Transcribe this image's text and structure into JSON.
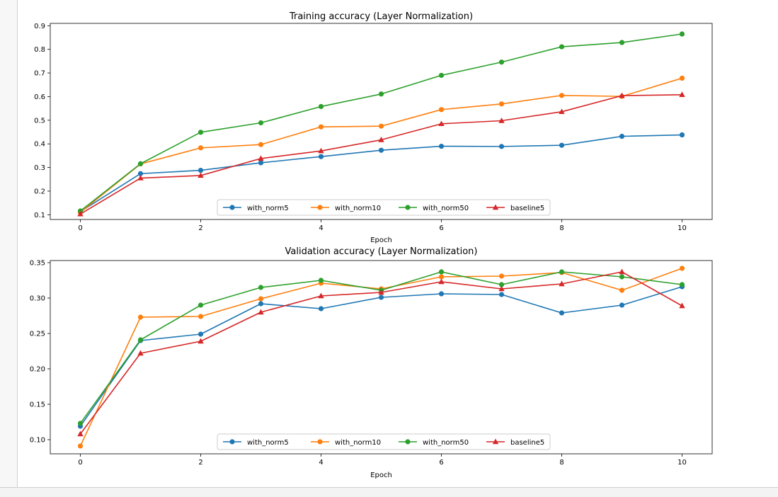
{
  "chart_data": [
    {
      "type": "line",
      "title": "Training accuracy (Layer Normalization)",
      "xlabel": "Epoch",
      "ylabel": "",
      "xlim": [
        -0.5,
        10.5
      ],
      "ylim": [
        0.08,
        0.91
      ],
      "xticks": [
        0,
        2,
        4,
        6,
        8,
        10
      ],
      "yticks": [
        0.1,
        0.2,
        0.3,
        0.4,
        0.5,
        0.6,
        0.7,
        0.8,
        0.9
      ],
      "ytick_labels": [
        "0.1",
        "0.2",
        "0.3",
        "0.4",
        "0.5",
        "0.6",
        "0.7",
        "0.8",
        "0.9"
      ],
      "grid": false,
      "legend": "lower-center",
      "x": [
        0,
        1,
        2,
        3,
        4,
        5,
        6,
        7,
        8,
        9,
        10
      ],
      "series": [
        {
          "name": "with_norm5",
          "color": "#1f77b4",
          "marker": "circle",
          "values": [
            0.113,
            0.274,
            0.288,
            0.32,
            0.346,
            0.373,
            0.39,
            0.389,
            0.394,
            0.432,
            0.438
          ]
        },
        {
          "name": "with_norm10",
          "color": "#ff7f0e",
          "marker": "circle",
          "values": [
            0.11,
            0.315,
            0.383,
            0.397,
            0.472,
            0.475,
            0.545,
            0.569,
            0.605,
            0.601,
            0.678
          ]
        },
        {
          "name": "with_norm50",
          "color": "#2ca02c",
          "marker": "circle",
          "values": [
            0.116,
            0.316,
            0.449,
            0.489,
            0.558,
            0.611,
            0.69,
            0.746,
            0.811,
            0.829,
            0.865
          ]
        },
        {
          "name": "baseline5",
          "color": "#d62728",
          "marker": "triangle",
          "values": [
            0.103,
            0.255,
            0.266,
            0.338,
            0.37,
            0.417,
            0.485,
            0.498,
            0.536,
            0.604,
            0.608
          ]
        }
      ]
    },
    {
      "type": "line",
      "title": "Validation accuracy (Layer Normalization)",
      "xlabel": "Epoch",
      "ylabel": "",
      "xlim": [
        -0.5,
        10.5
      ],
      "ylim": [
        0.08,
        0.353
      ],
      "xticks": [
        0,
        2,
        4,
        6,
        8,
        10
      ],
      "yticks": [
        0.1,
        0.15,
        0.2,
        0.25,
        0.3,
        0.35
      ],
      "ytick_labels": [
        "0.10",
        "0.15",
        "0.20",
        "0.25",
        "0.30",
        "0.35"
      ],
      "grid": false,
      "legend": "lower-center",
      "x": [
        0,
        1,
        2,
        3,
        4,
        5,
        6,
        7,
        8,
        9,
        10
      ],
      "series": [
        {
          "name": "with_norm5",
          "color": "#1f77b4",
          "marker": "circle",
          "values": [
            0.119,
            0.24,
            0.249,
            0.292,
            0.285,
            0.301,
            0.306,
            0.305,
            0.279,
            0.29,
            0.316
          ]
        },
        {
          "name": "with_norm10",
          "color": "#ff7f0e",
          "marker": "circle",
          "values": [
            0.091,
            0.273,
            0.274,
            0.299,
            0.321,
            0.313,
            0.33,
            0.331,
            0.336,
            0.311,
            0.342
          ]
        },
        {
          "name": "with_norm50",
          "color": "#2ca02c",
          "marker": "circle",
          "values": [
            0.123,
            0.241,
            0.29,
            0.315,
            0.325,
            0.311,
            0.337,
            0.319,
            0.337,
            0.33,
            0.319
          ]
        },
        {
          "name": "baseline5",
          "color": "#d62728",
          "marker": "triangle",
          "values": [
            0.108,
            0.222,
            0.239,
            0.28,
            0.303,
            0.308,
            0.323,
            0.313,
            0.32,
            0.337,
            0.289
          ]
        }
      ]
    }
  ]
}
